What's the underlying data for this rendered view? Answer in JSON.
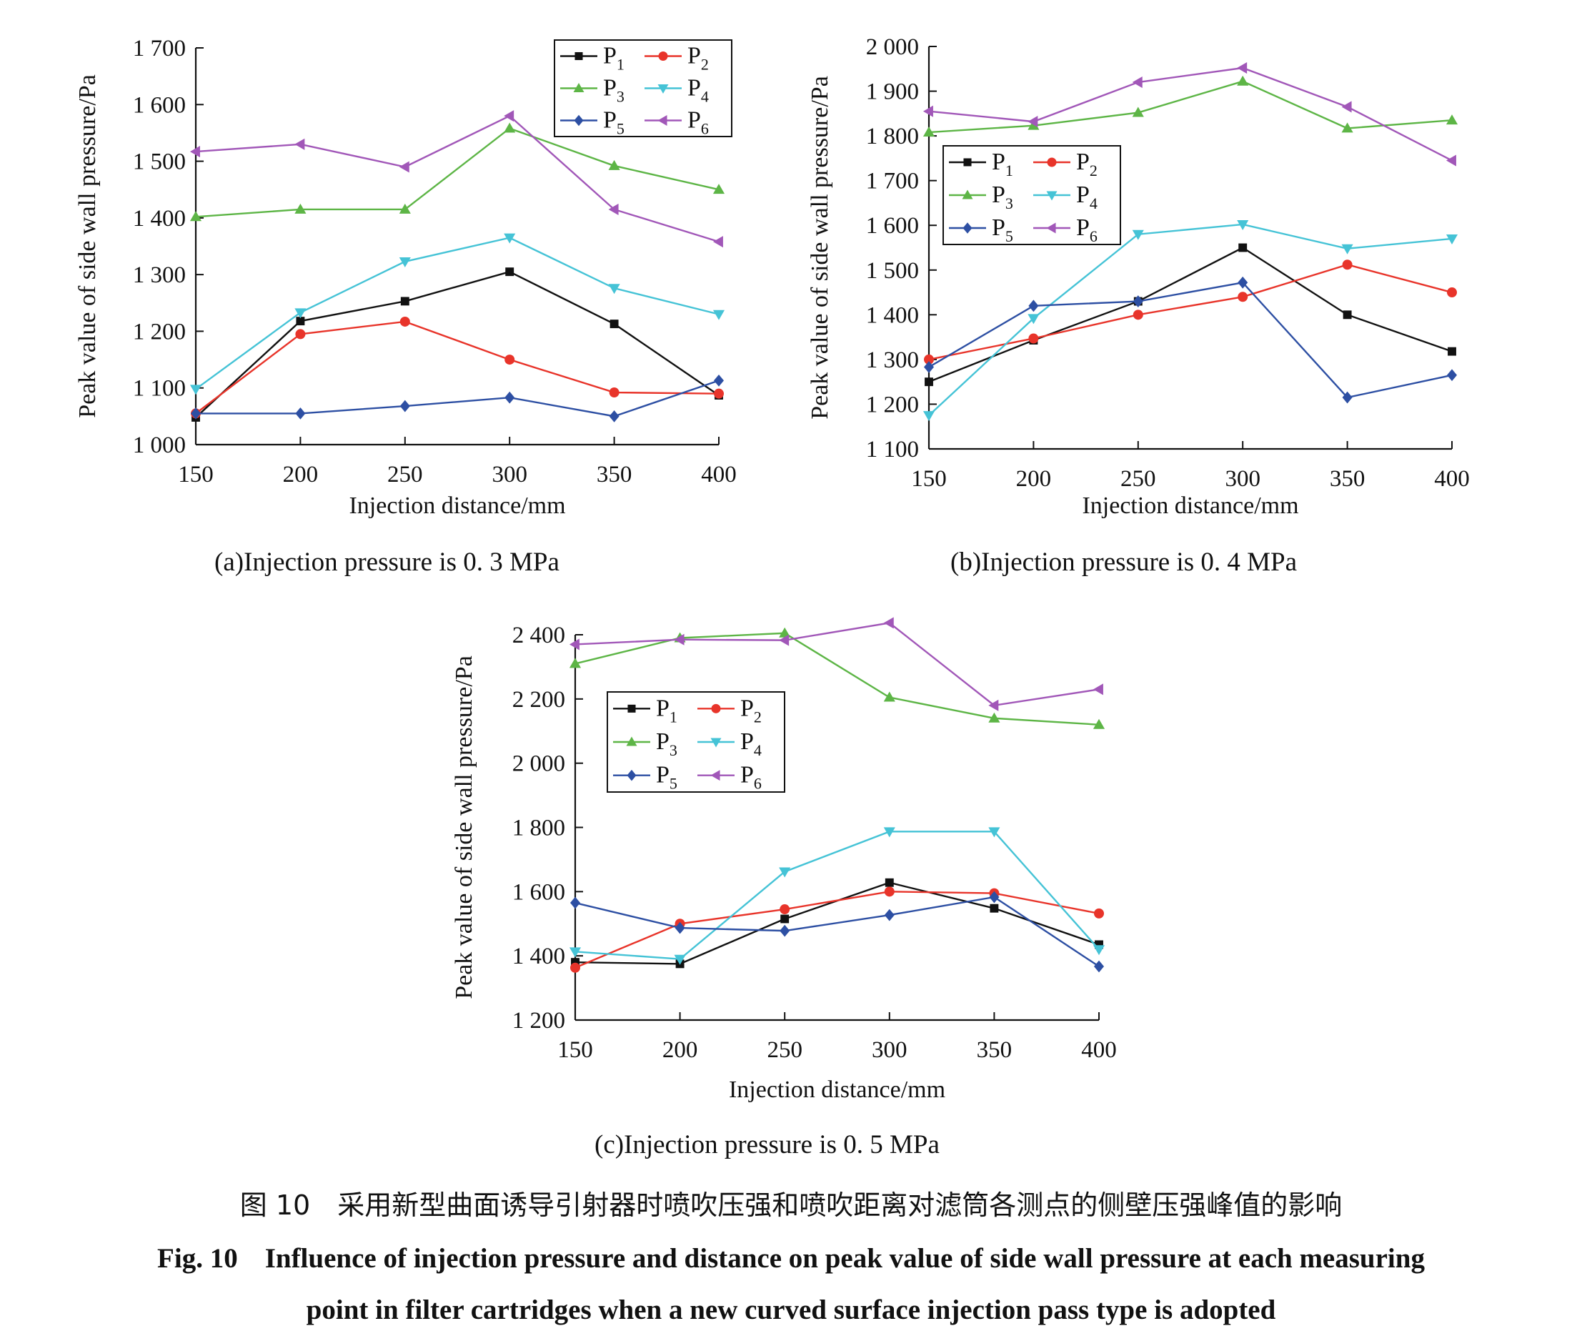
{
  "chart_data": [
    {
      "type": "line",
      "caption": "(a)Injection pressure is 0. 3 MPa",
      "xlabel": "Injection distance/mm",
      "ylabel": "Peak value of side wall pressure/Pa",
      "x": [
        150,
        200,
        250,
        300,
        350,
        400
      ],
      "x_ticks": [
        "150",
        "200",
        "250",
        "300",
        "350",
        "400"
      ],
      "ylim": [
        1000,
        1700
      ],
      "y_ticks": [
        1000,
        1100,
        1200,
        1300,
        1400,
        1500,
        1600,
        1700
      ],
      "y_tick_labels": [
        "1 000",
        "1 100",
        "1 200",
        "1 300",
        "1 400",
        "1 500",
        "1 600",
        "1 700"
      ],
      "legend_position": "top-right",
      "series": [
        {
          "name": "P1",
          "label_main": "P",
          "label_sub": "1",
          "color": "#111111",
          "marker": "square",
          "values": [
            1048,
            1218,
            1253,
            1305,
            1213,
            1087
          ]
        },
        {
          "name": "P2",
          "label_main": "P",
          "label_sub": "2",
          "color": "#e8342a",
          "marker": "circle",
          "values": [
            1055,
            1195,
            1217,
            1150,
            1092,
            1090
          ]
        },
        {
          "name": "P3",
          "label_main": "P",
          "label_sub": "3",
          "color": "#5db546",
          "marker": "triangle",
          "values": [
            1402,
            1415,
            1415,
            1558,
            1492,
            1450
          ]
        },
        {
          "name": "P4",
          "label_main": "P",
          "label_sub": "4",
          "color": "#45c3d6",
          "marker": "tri-down",
          "values": [
            1098,
            1233,
            1323,
            1365,
            1276,
            1230
          ]
        },
        {
          "name": "P5",
          "label_main": "P",
          "label_sub": "5",
          "color": "#2d4fa3",
          "marker": "diamond",
          "values": [
            1055,
            1055,
            1068,
            1083,
            1050,
            1113
          ]
        },
        {
          "name": "P6",
          "label_main": "P",
          "label_sub": "6",
          "color": "#a157b8",
          "marker": "tri-left",
          "values": [
            1517,
            1530,
            1490,
            1580,
            1415,
            1358
          ]
        }
      ]
    },
    {
      "type": "line",
      "caption": "(b)Injection pressure is 0. 4 MPa",
      "xlabel": "Injection distance/mm",
      "ylabel": "Peak value of side wall pressure/Pa",
      "x": [
        150,
        200,
        250,
        300,
        350,
        400
      ],
      "x_ticks": [
        "150",
        "200",
        "250",
        "300",
        "350",
        "400"
      ],
      "ylim": [
        1100,
        2000
      ],
      "y_ticks": [
        1100,
        1200,
        1300,
        1400,
        1500,
        1600,
        1700,
        1800,
        1900,
        2000
      ],
      "y_tick_labels": [
        "1 100",
        "1 200",
        "1 300",
        "1 400",
        "1 500",
        "1 600",
        "1 700",
        "1 800",
        "1 900",
        "2 000"
      ],
      "legend_position": "middle-left",
      "series": [
        {
          "name": "P1",
          "label_main": "P",
          "label_sub": "1",
          "color": "#111111",
          "marker": "square",
          "values": [
            1250,
            1343,
            1430,
            1550,
            1400,
            1318
          ]
        },
        {
          "name": "P2",
          "label_main": "P",
          "label_sub": "2",
          "color": "#e8342a",
          "marker": "circle",
          "values": [
            1300,
            1347,
            1400,
            1440,
            1512,
            1450
          ]
        },
        {
          "name": "P3",
          "label_main": "P",
          "label_sub": "3",
          "color": "#5db546",
          "marker": "triangle",
          "values": [
            1808,
            1823,
            1852,
            1922,
            1817,
            1835
          ]
        },
        {
          "name": "P4",
          "label_main": "P",
          "label_sub": "4",
          "color": "#45c3d6",
          "marker": "tri-down",
          "values": [
            1175,
            1392,
            1580,
            1602,
            1548,
            1570
          ]
        },
        {
          "name": "P5",
          "label_main": "P",
          "label_sub": "5",
          "color": "#2d4fa3",
          "marker": "diamond",
          "values": [
            1283,
            1420,
            1430,
            1472,
            1215,
            1265
          ]
        },
        {
          "name": "P6",
          "label_main": "P",
          "label_sub": "6",
          "color": "#a157b8",
          "marker": "tri-left",
          "values": [
            1855,
            1832,
            1920,
            1952,
            1865,
            1745
          ]
        }
      ]
    },
    {
      "type": "line",
      "caption": "(c)Injection pressure is 0. 5 MPa",
      "xlabel": "Injection distance/mm",
      "ylabel": "Peak value of side wall pressure/Pa",
      "x": [
        150,
        200,
        250,
        300,
        350,
        400
      ],
      "x_ticks": [
        "150",
        "200",
        "250",
        "300",
        "350",
        "400"
      ],
      "ylim": [
        1200,
        2400
      ],
      "y_ticks": [
        1200,
        1400,
        1600,
        1800,
        2000,
        2200,
        2400
      ],
      "y_tick_labels": [
        "1 200",
        "1 400",
        "1 600",
        "1 800",
        "2 000",
        "2 200",
        "2 400"
      ],
      "legend_position": "top-left",
      "series": [
        {
          "name": "P1",
          "label_main": "P",
          "label_sub": "1",
          "color": "#111111",
          "marker": "square",
          "values": [
            1380,
            1375,
            1515,
            1628,
            1548,
            1435
          ]
        },
        {
          "name": "P2",
          "label_main": "P",
          "label_sub": "2",
          "color": "#e8342a",
          "marker": "circle",
          "values": [
            1363,
            1500,
            1545,
            1600,
            1595,
            1532
          ]
        },
        {
          "name": "P3",
          "label_main": "P",
          "label_sub": "3",
          "color": "#5db546",
          "marker": "triangle",
          "values": [
            2310,
            2390,
            2405,
            2205,
            2140,
            2120
          ]
        },
        {
          "name": "P4",
          "label_main": "P",
          "label_sub": "4",
          "color": "#45c3d6",
          "marker": "tri-down",
          "values": [
            1413,
            1390,
            1662,
            1787,
            1787,
            1420
          ]
        },
        {
          "name": "P5",
          "label_main": "P",
          "label_sub": "5",
          "color": "#2d4fa3",
          "marker": "diamond",
          "values": [
            1565,
            1487,
            1478,
            1527,
            1583,
            1367
          ]
        },
        {
          "name": "P6",
          "label_main": "P",
          "label_sub": "6",
          "color": "#a157b8",
          "marker": "tri-left",
          "values": [
            2370,
            2385,
            2383,
            2437,
            2180,
            2230
          ]
        }
      ]
    }
  ],
  "figure": {
    "caption_cn_label": "图 10",
    "caption_cn_text": "采用新型曲面诱导引射器时喷吹压强和喷吹距离对滤筒各测点的侧壁压强峰值的影响",
    "caption_en_label": "Fig. 10",
    "caption_en_line1": "Influence of injection pressure and distance on peak value of side wall pressure at each measuring",
    "caption_en_line2": "point in filter cartridges when a new curved surface injection pass type is adopted"
  }
}
